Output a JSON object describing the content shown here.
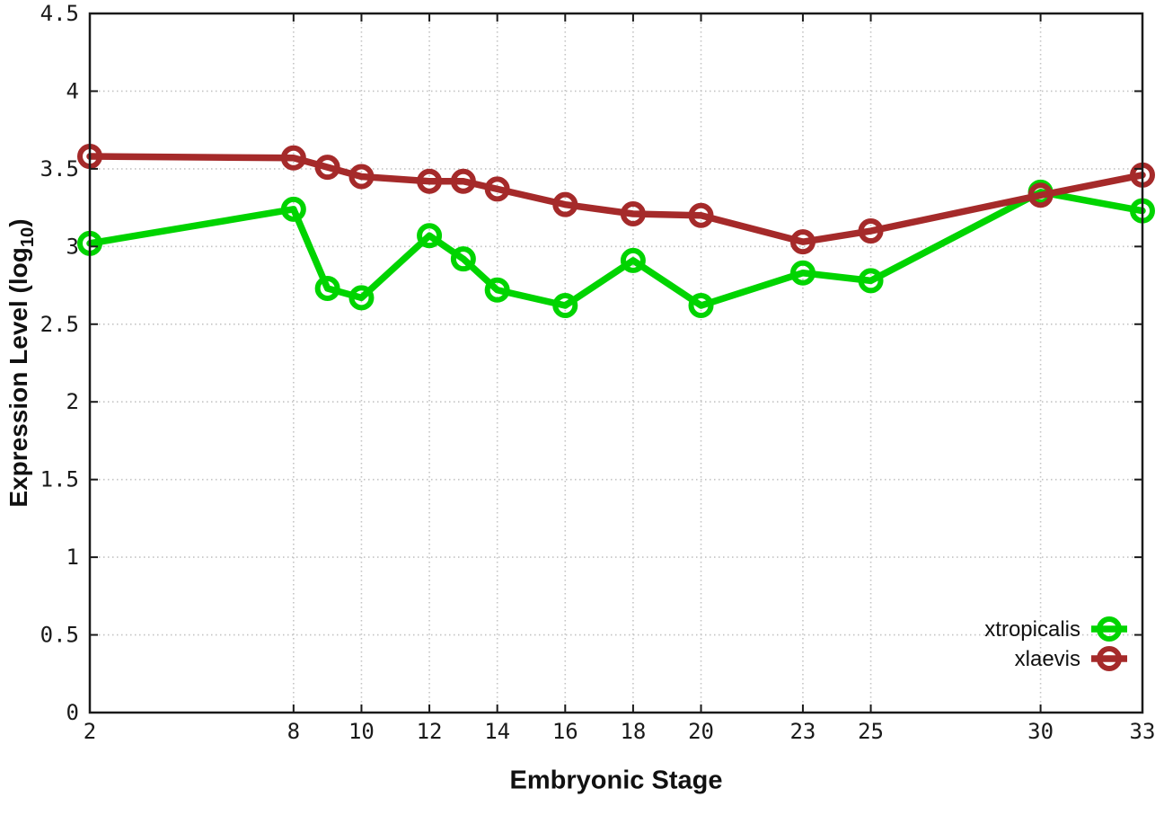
{
  "chart_data": {
    "type": "line",
    "title": "",
    "xlabel": "Embryonic Stage",
    "ylabel_prefix": "Expression Level (log",
    "ylabel_sub": "10",
    "ylabel_suffix": ")",
    "xlim": [
      2,
      33
    ],
    "ylim": [
      0,
      4.5
    ],
    "grid": true,
    "legend_position": "inside-bottom-right",
    "x": [
      2,
      8,
      9,
      10,
      12,
      13,
      14,
      16,
      18,
      20,
      23,
      25,
      30,
      33
    ],
    "xtick_values": [
      2,
      8,
      10,
      12,
      14,
      16,
      18,
      20,
      23,
      25,
      30,
      33
    ],
    "xtick_labels": [
      "2",
      "8",
      "10",
      "12",
      "14",
      "16",
      "18",
      "20",
      "23",
      "25",
      "30",
      "33"
    ],
    "ytick_values": [
      0,
      0.5,
      1,
      1.5,
      2,
      2.5,
      3,
      3.5,
      4,
      4.5
    ],
    "ytick_labels": [
      "0",
      "0.5",
      "1",
      "1.5",
      "2",
      "2.5",
      "3",
      "3.5",
      "4",
      "4.5"
    ],
    "series": [
      {
        "name": "xtropicalis",
        "color": "#00d400",
        "values": [
          3.02,
          3.24,
          2.73,
          2.67,
          3.07,
          2.92,
          2.72,
          2.62,
          2.91,
          2.62,
          2.83,
          2.78,
          3.35,
          3.23
        ]
      },
      {
        "name": "xlaevis",
        "color": "#a52a2a",
        "values": [
          3.58,
          3.57,
          3.51,
          3.45,
          3.42,
          3.42,
          3.37,
          3.27,
          3.21,
          3.2,
          3.03,
          3.1,
          3.33,
          3.46
        ]
      }
    ]
  },
  "colors": {
    "grid": "#c3c3c3",
    "axis": "#1a1a1a",
    "background": "#ffffff"
  }
}
